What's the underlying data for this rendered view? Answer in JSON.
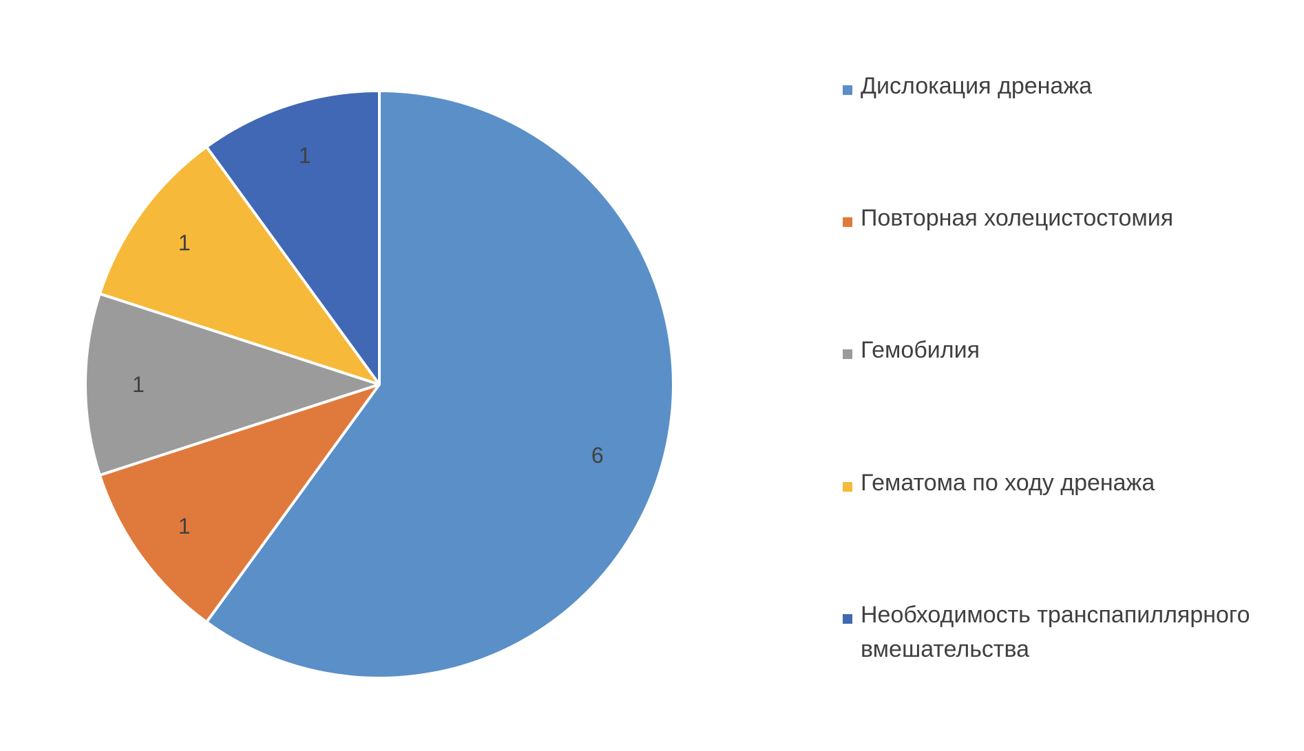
{
  "chart_data": {
    "type": "pie",
    "title": "",
    "start_angle_deg": 0,
    "direction": "clockwise",
    "categories": [
      "Дислокация дренажа",
      "Повторная холецистостомия",
      "Гемобилия",
      "Гематома по ходу дренажа",
      "Необходимость транспапиллярного вмешательства"
    ],
    "values": [
      6,
      1,
      1,
      1,
      1
    ],
    "colors": [
      "#5A8FC8",
      "#E07A3C",
      "#9B9B9B",
      "#F6B93A",
      "#4068B4"
    ],
    "data_labels": [
      "6",
      "1",
      "1",
      "1",
      "1"
    ],
    "legend_position": "right"
  },
  "legend": {
    "items": [
      {
        "label": "Дислокация дренажа",
        "color": "#5A8FC8"
      },
      {
        "label": "Повторная холецистостомия",
        "color": "#E07A3C"
      },
      {
        "label": "Гемобилия",
        "color": "#9B9B9B"
      },
      {
        "label": "Гематома по ходу дренажа",
        "color": "#F6B93A"
      },
      {
        "label": "Необходимость транспапиллярного вмешательства",
        "color": "#4068B4"
      }
    ]
  }
}
